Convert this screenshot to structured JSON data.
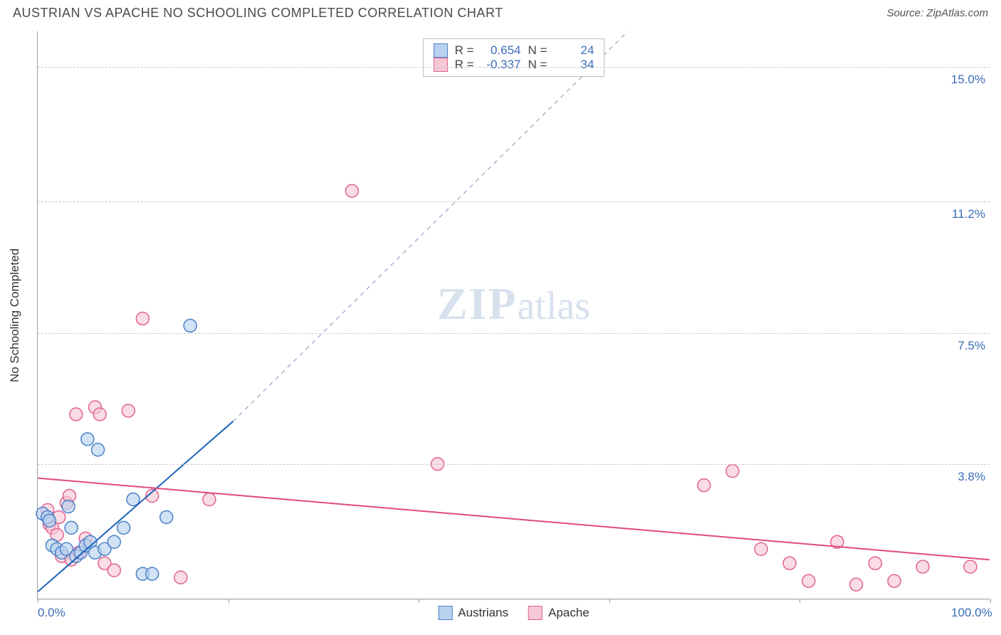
{
  "header": {
    "title": "AUSTRIAN VS APACHE NO SCHOOLING COMPLETED CORRELATION CHART",
    "source": "Source: ZipAtlas.com"
  },
  "chart": {
    "type": "scatter",
    "ylabel": "No Schooling Completed",
    "watermark_zip": "ZIP",
    "watermark_atlas": "atlas",
    "background_color": "#ffffff",
    "grid_color": "#cccccc",
    "axis_color": "#999999",
    "tick_label_color": "#3b6db8",
    "xlim": [
      0,
      100
    ],
    "ylim": [
      0,
      16
    ],
    "xticks": [
      0,
      20,
      40,
      60,
      80,
      100
    ],
    "xtick_labels": {
      "0": "0.0%",
      "100": "100.0%"
    },
    "yticks": [
      3.8,
      7.5,
      11.2,
      15.0
    ],
    "ytick_labels": [
      "3.8%",
      "7.5%",
      "11.2%",
      "15.0%"
    ],
    "marker_radius": 9,
    "marker_stroke_width": 1.5,
    "line_width": 2,
    "series": {
      "austrians": {
        "label": "Austrians",
        "fill": "#b9d2f0",
        "stroke": "#4b80c7",
        "line_color": "#1e62b9",
        "R": "0.654",
        "N": "24",
        "trend": {
          "x1": 0,
          "y1": 0.2,
          "x2": 20.5,
          "y2": 5.0,
          "dash_x_end": 62,
          "dash_y_end": 16
        },
        "points": [
          [
            0.5,
            2.4
          ],
          [
            1.0,
            2.3
          ],
          [
            1.2,
            2.2
          ],
          [
            1.5,
            1.5
          ],
          [
            2.0,
            1.4
          ],
          [
            2.5,
            1.3
          ],
          [
            3.0,
            1.4
          ],
          [
            3.2,
            2.6
          ],
          [
            3.5,
            2.0
          ],
          [
            4.0,
            1.2
          ],
          [
            4.5,
            1.3
          ],
          [
            5.0,
            1.5
          ],
          [
            5.2,
            4.5
          ],
          [
            5.5,
            1.6
          ],
          [
            6.0,
            1.3
          ],
          [
            6.3,
            4.2
          ],
          [
            7.0,
            1.4
          ],
          [
            8.0,
            1.6
          ],
          [
            9.0,
            2.0
          ],
          [
            10.0,
            2.8
          ],
          [
            11.0,
            0.7
          ],
          [
            12.0,
            0.7
          ],
          [
            13.5,
            2.3
          ],
          [
            16.0,
            7.7
          ]
        ]
      },
      "apache": {
        "label": "Apache",
        "fill": "#f6c9d6",
        "stroke": "#e16292",
        "line_color": "#e14a7c",
        "R": "-0.337",
        "N": "34",
        "trend": {
          "x1": 0,
          "y1": 3.4,
          "x2": 100,
          "y2": 1.1
        },
        "points": [
          [
            1.0,
            2.5
          ],
          [
            1.2,
            2.1
          ],
          [
            1.5,
            2.0
          ],
          [
            2.0,
            1.8
          ],
          [
            2.2,
            2.3
          ],
          [
            2.5,
            1.2
          ],
          [
            3.0,
            2.7
          ],
          [
            3.3,
            2.9
          ],
          [
            3.5,
            1.1
          ],
          [
            4.0,
            5.2
          ],
          [
            4.3,
            1.3
          ],
          [
            5.0,
            1.7
          ],
          [
            6.0,
            5.4
          ],
          [
            6.5,
            5.2
          ],
          [
            7.0,
            1.0
          ],
          [
            8.0,
            0.8
          ],
          [
            9.5,
            5.3
          ],
          [
            11.0,
            7.9
          ],
          [
            12.0,
            2.9
          ],
          [
            15.0,
            0.6
          ],
          [
            18.0,
            2.8
          ],
          [
            33.0,
            11.5
          ],
          [
            42.0,
            3.8
          ],
          [
            70.0,
            3.2
          ],
          [
            73.0,
            3.6
          ],
          [
            76.0,
            1.4
          ],
          [
            79.0,
            1.0
          ],
          [
            81.0,
            0.5
          ],
          [
            84.0,
            1.6
          ],
          [
            86.0,
            0.4
          ],
          [
            88.0,
            1.0
          ],
          [
            90.0,
            0.5
          ],
          [
            93.0,
            0.9
          ],
          [
            98.0,
            0.9
          ]
        ]
      }
    },
    "stats_labels": {
      "R": "R =",
      "N": "N ="
    }
  }
}
